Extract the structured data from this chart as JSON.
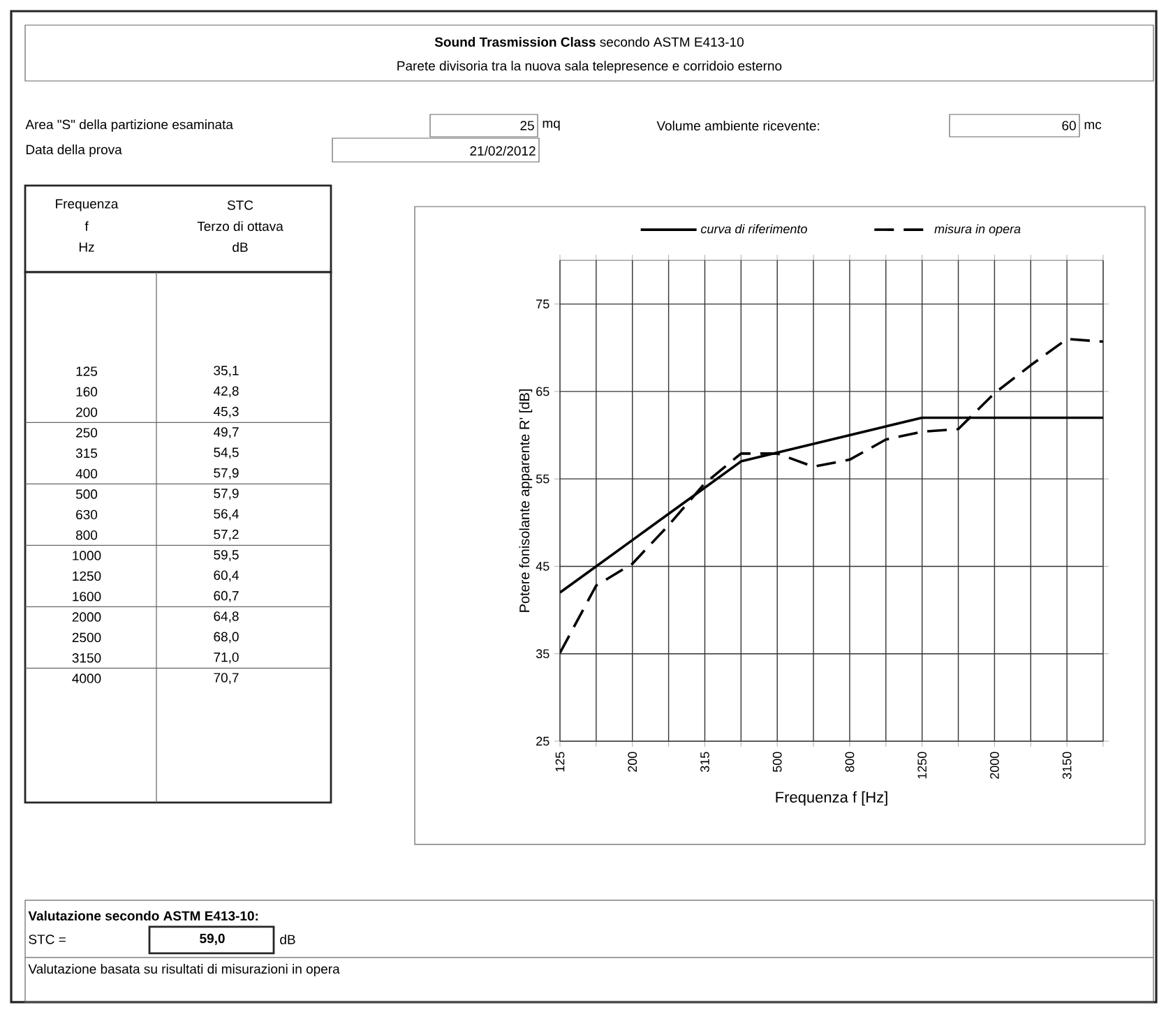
{
  "chart_data": {
    "type": "line",
    "title": "**Sound Trasmission Class** secondo ASTM E413-10",
    "subtitle": "Parete divisoria tra la nuova sala telepresence e corridoio esterno",
    "xlabel": "Frequenza f [Hz]",
    "ylabel": "Potere fonisolante apparente R' [dB]",
    "categories": [
      "125",
      null,
      "200",
      null,
      "315",
      null,
      "500",
      null,
      "800",
      null,
      "1250",
      null,
      "2000",
      null,
      "3150",
      null
    ],
    "series": [
      {
        "name": "curva di riferimento",
        "color": "#000000",
        "line_style": "solid",
        "values": [
          42,
          45,
          48,
          51,
          54,
          57,
          58,
          59,
          60,
          61,
          62,
          62,
          62,
          62,
          62,
          62
        ]
      },
      {
        "name": "misura in opera",
        "color": "#000000",
        "line_style": "dashed",
        "values": [
          35.1,
          42.8,
          45.3,
          49.7,
          54.5,
          57.9,
          57.9,
          56.4,
          57.2,
          59.5,
          60.4,
          60.7,
          64.8,
          68.0,
          71.0,
          70.7
        ]
      }
    ],
    "ylim": [
      25,
      80
    ],
    "yticks": [
      25,
      35,
      45,
      55,
      65,
      75
    ],
    "grid": true,
    "legend": "top",
    "annotations": [
      "Area \"S\" della partizione esaminata",
      "25",
      "mq",
      "Volume ambiente ricevente:",
      "60",
      "mc",
      "Data della prova",
      "21/02/2012",
      "Frequenza",
      "f",
      "Hz",
      "STC",
      "Terzo di ottava",
      "dB",
      "Valutazione secondo ASTM E413-10:",
      "STC =",
      "59,0",
      "dB",
      "Valutazione basata su risultati di misurazioni in opera",
      "125",
      "35,1",
      "160",
      "42,8",
      "200",
      "45,3",
      "250",
      "49,7",
      "315",
      "54,5",
      "400",
      "57,9",
      "500",
      "57,9",
      "630",
      "56,4",
      "800",
      "57,2",
      "1000",
      "59,5",
      "1250",
      "60,4",
      "1600",
      "60,7",
      "2000",
      "64,8",
      "2500",
      "68,0",
      "3150",
      "71,0",
      "4000",
      "70,7"
    ]
  }
}
